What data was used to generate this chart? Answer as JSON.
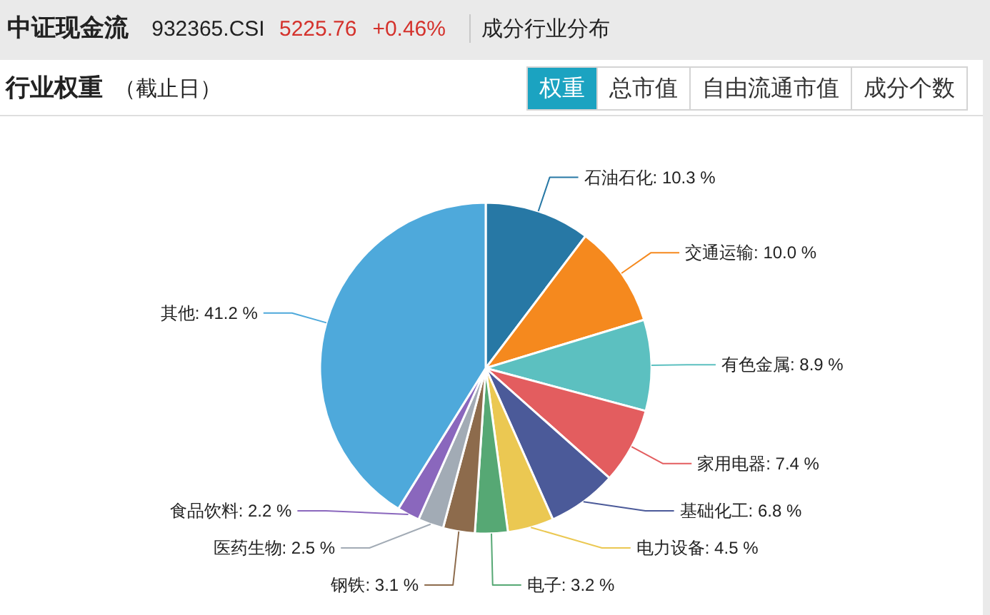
{
  "chart_data": {
    "type": "pie",
    "title": "行业权重",
    "subtitle": "（截止日）",
    "categories": [
      "石油石化",
      "交通运输",
      "有色金属",
      "家用电器",
      "基础化工",
      "电力设备",
      "电子",
      "钢铁",
      "医药生物",
      "食品饮料",
      "其他"
    ],
    "values": [
      10.3,
      10.0,
      8.9,
      7.4,
      6.8,
      4.5,
      3.2,
      3.1,
      2.5,
      2.2,
      41.2
    ],
    "colors": [
      "#2778a5",
      "#f5891e",
      "#5cc0c0",
      "#e35d5f",
      "#4b5a99",
      "#ebc852",
      "#56a874",
      "#8d6b4c",
      "#a2abb5",
      "#8a67bd",
      "#4ea9db"
    ],
    "value_labels": [
      "10.3 %",
      "10.0 %",
      "8.9 %",
      "7.4 %",
      "6.8 %",
      "4.5 %",
      "3.2 %",
      "3.1 %",
      "2.5 %",
      "2.2 %",
      "41.2 %"
    ],
    "annotations": [
      "中证现金流",
      "932365.CSI",
      "5225.76",
      "+0.46%",
      "成分行业分布",
      "权重",
      "总市值",
      "自由流通市值",
      "成分个数"
    ]
  }
}
